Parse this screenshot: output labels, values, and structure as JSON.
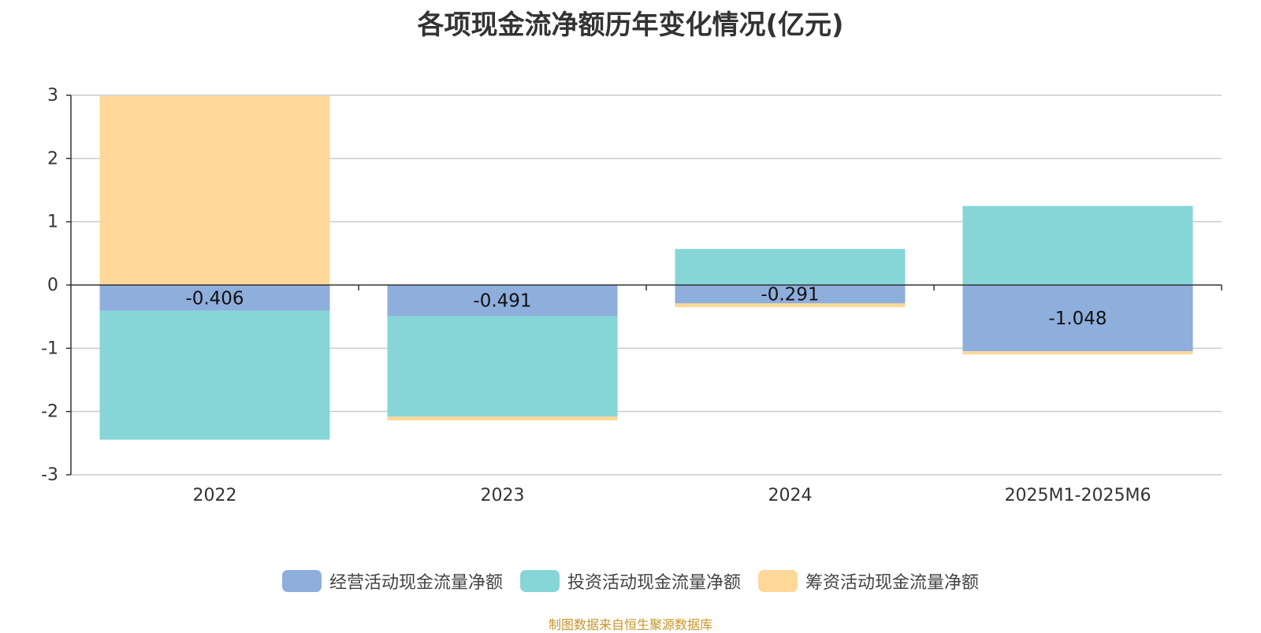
{
  "chart_data": {
    "type": "bar",
    "stacked": true,
    "title": "各项现金流净额历年变化情况(亿元)",
    "categories": [
      "2022",
      "2023",
      "2024",
      "2025M1-2025M6"
    ],
    "ylim": [
      -3,
      3
    ],
    "yticks": [
      3,
      2,
      1,
      0,
      -1,
      -2,
      -3
    ],
    "grid": true,
    "legend_position": "bottom",
    "series": [
      {
        "name": "经营活动现金流量净额",
        "color": "#8eaedc",
        "values": [
          -0.406,
          -0.491,
          -0.291,
          -1.048
        ],
        "labels": [
          "-0.406",
          "-0.491",
          "-0.291",
          "-1.048"
        ]
      },
      {
        "name": "投资活动现金流量净额",
        "color": "#86d6d8",
        "values": [
          -2.04,
          -1.59,
          0.57,
          1.25
        ]
      },
      {
        "name": "筹资活动现金流量净额",
        "color": "#fdd899",
        "values": [
          2.99,
          -0.06,
          -0.06,
          -0.05
        ]
      }
    ]
  },
  "source_note": "制图数据来自恒生聚源数据库"
}
